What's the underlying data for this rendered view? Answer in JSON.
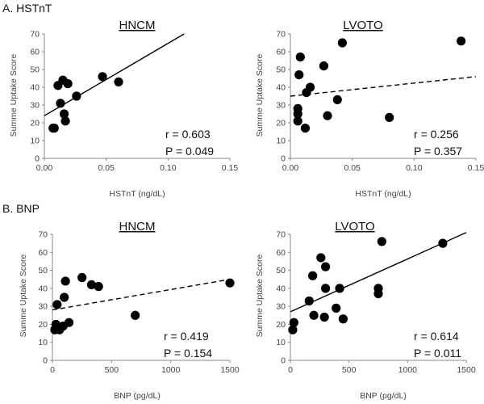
{
  "figure": {
    "section_labels": [
      "A. HSTnT",
      "B. BNP"
    ]
  },
  "chart_data": [
    {
      "type": "scatter",
      "section": "A. HSTnT",
      "title": "HNCM",
      "xlabel": "HSTnT (ng/dL)",
      "ylabel": "Summe Uptake Score",
      "xlim": [
        0,
        0.15
      ],
      "ylim": [
        0,
        70
      ],
      "xticks": [
        0,
        0.05,
        0.1,
        0.15
      ],
      "xtick_labels": [
        "0.00",
        "0.05",
        "0.10",
        "0.15"
      ],
      "yticks": [
        0,
        10,
        20,
        30,
        40,
        50,
        60,
        70
      ],
      "points": [
        [
          0.007,
          17
        ],
        [
          0.008,
          17
        ],
        [
          0.011,
          41
        ],
        [
          0.013,
          31
        ],
        [
          0.015,
          44
        ],
        [
          0.016,
          25
        ],
        [
          0.017,
          21
        ],
        [
          0.019,
          42
        ],
        [
          0.026,
          35
        ],
        [
          0.047,
          46
        ],
        [
          0.06,
          43
        ]
      ],
      "fit": {
        "x": [
          0,
          0.113
        ],
        "y": [
          24,
          70
        ],
        "style": "solid"
      },
      "stats": {
        "r": "r = 0.603",
        "p": "P = 0.049"
      }
    },
    {
      "type": "scatter",
      "section": "A. HSTnT",
      "title": "LVOTO",
      "xlabel": "HSTnT (ng/dL)",
      "ylabel": "Summe Uptake Score",
      "xlim": [
        0,
        0.15
      ],
      "ylim": [
        0,
        70
      ],
      "xticks": [
        0,
        0.05,
        0.1,
        0.15
      ],
      "xtick_labels": [
        "0.00",
        "0.05",
        "0.10",
        "0.15"
      ],
      "yticks": [
        0,
        10,
        20,
        30,
        40,
        50,
        60,
        70
      ],
      "points": [
        [
          0.006,
          21
        ],
        [
          0.006,
          25
        ],
        [
          0.006,
          28
        ],
        [
          0.007,
          47
        ],
        [
          0.008,
          57
        ],
        [
          0.012,
          17
        ],
        [
          0.013,
          37
        ],
        [
          0.016,
          40
        ],
        [
          0.027,
          52
        ],
        [
          0.03,
          24
        ],
        [
          0.038,
          33
        ],
        [
          0.042,
          65
        ],
        [
          0.08,
          23
        ],
        [
          0.138,
          66
        ]
      ],
      "fit": {
        "x": [
          0,
          0.15
        ],
        "y": [
          35,
          46
        ],
        "style": "dashed"
      },
      "stats": {
        "r": "r = 0.256",
        "p": "P = 0.357"
      }
    },
    {
      "type": "scatter",
      "section": "B. BNP",
      "title": "HNCM",
      "xlabel": "BNP (pg/dL)",
      "ylabel": "Summe Uptake Score",
      "xlim": [
        0,
        1500
      ],
      "ylim": [
        0,
        70
      ],
      "xticks": [
        0,
        500,
        1000,
        1500
      ],
      "xtick_labels": [
        "0",
        "500",
        "1000",
        "1500"
      ],
      "yticks": [
        0,
        10,
        20,
        30,
        40,
        50,
        60,
        70
      ],
      "points": [
        [
          20,
          17
        ],
        [
          30,
          20
        ],
        [
          40,
          31
        ],
        [
          60,
          17
        ],
        [
          90,
          19
        ],
        [
          100,
          35
        ],
        [
          110,
          44
        ],
        [
          140,
          21
        ],
        [
          250,
          46
        ],
        [
          330,
          42
        ],
        [
          390,
          41
        ],
        [
          700,
          25
        ],
        [
          1500,
          43
        ]
      ],
      "fit": {
        "x": [
          0,
          1500
        ],
        "y": [
          28,
          45
        ],
        "style": "dashed"
      },
      "stats": {
        "r": "r = 0.419",
        "p": "P = 0.154"
      }
    },
    {
      "type": "scatter",
      "section": "B. BNP",
      "title": "LVOTO",
      "xlabel": "BNP (pg/dL)",
      "ylabel": "Summe Uptake Score",
      "xlim": [
        0,
        1500
      ],
      "ylim": [
        0,
        70
      ],
      "xticks": [
        0,
        500,
        1000,
        1500
      ],
      "xtick_labels": [
        "0",
        "500",
        "1000",
        "1500"
      ],
      "yticks": [
        0,
        10,
        20,
        30,
        40,
        50,
        60,
        70
      ],
      "points": [
        [
          20,
          17
        ],
        [
          30,
          21
        ],
        [
          160,
          33
        ],
        [
          190,
          47
        ],
        [
          200,
          25
        ],
        [
          260,
          57
        ],
        [
          290,
          24
        ],
        [
          300,
          40
        ],
        [
          300,
          52
        ],
        [
          390,
          29
        ],
        [
          420,
          40
        ],
        [
          450,
          23
        ],
        [
          750,
          37
        ],
        [
          750,
          40
        ],
        [
          780,
          66
        ],
        [
          1300,
          65
        ]
      ],
      "fit": {
        "x": [
          0,
          1500
        ],
        "y": [
          27,
          71
        ],
        "style": "solid"
      },
      "stats": {
        "r": "r = 0.614",
        "p": "P = 0.011"
      }
    }
  ]
}
